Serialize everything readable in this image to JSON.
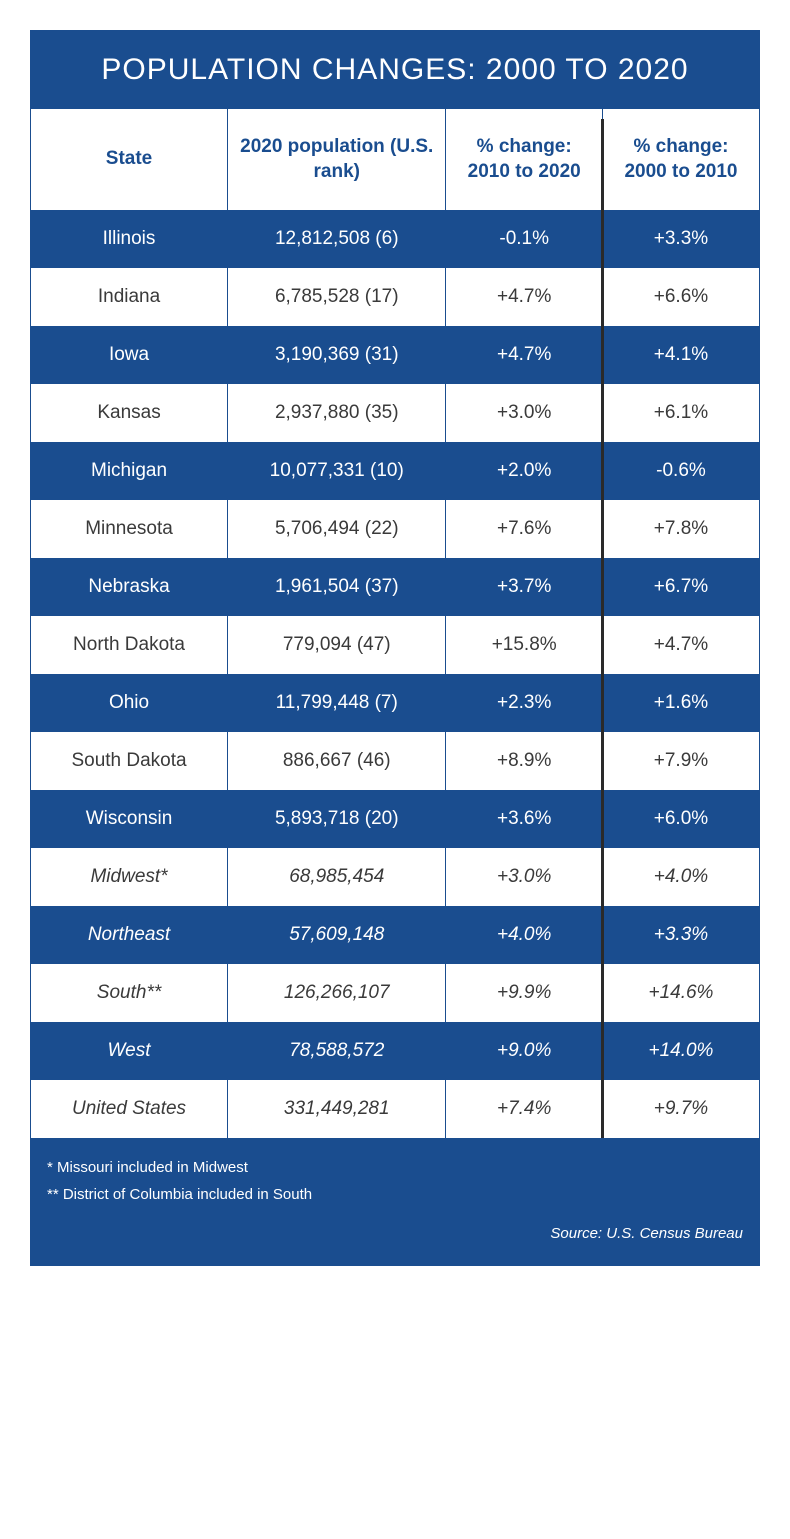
{
  "title": "POPULATION CHANGES: 2000 TO 2020",
  "colors": {
    "primary_blue": "#1a4d8f",
    "text_gray": "#3a3a3a",
    "divider": "#2a2a2a",
    "white": "#ffffff"
  },
  "typography": {
    "title_fontsize": 30,
    "header_fontsize": 19,
    "cell_fontsize": 19,
    "footer_fontsize": 15
  },
  "columns": [
    {
      "label": "State",
      "width_pct": 27
    },
    {
      "label": "2020 population (U.S. rank)",
      "width_pct": 30
    },
    {
      "label": "% change: 2010 to 2020",
      "width_pct": 21.5
    },
    {
      "label": "% change: 2000 to 2010",
      "width_pct": 21.5
    }
  ],
  "rows": [
    {
      "state": "Illinois",
      "pop": "12,812,508 (6)",
      "ch1": "-0.1%",
      "ch2": "+3.3%",
      "style": "blue",
      "italic": false
    },
    {
      "state": "Indiana",
      "pop": "6,785,528 (17)",
      "ch1": "+4.7%",
      "ch2": "+6.6%",
      "style": "white",
      "italic": false
    },
    {
      "state": "Iowa",
      "pop": "3,190,369 (31)",
      "ch1": "+4.7%",
      "ch2": "+4.1%",
      "style": "blue",
      "italic": false
    },
    {
      "state": "Kansas",
      "pop": "2,937,880 (35)",
      "ch1": "+3.0%",
      "ch2": "+6.1%",
      "style": "white",
      "italic": false
    },
    {
      "state": "Michigan",
      "pop": "10,077,331 (10)",
      "ch1": "+2.0%",
      "ch2": "-0.6%",
      "style": "blue",
      "italic": false
    },
    {
      "state": "Minnesota",
      "pop": "5,706,494 (22)",
      "ch1": "+7.6%",
      "ch2": "+7.8%",
      "style": "white",
      "italic": false
    },
    {
      "state": "Nebraska",
      "pop": "1,961,504 (37)",
      "ch1": "+3.7%",
      "ch2": "+6.7%",
      "style": "blue",
      "italic": false
    },
    {
      "state": "North Dakota",
      "pop": "779,094 (47)",
      "ch1": "+15.8%",
      "ch2": "+4.7%",
      "style": "white",
      "italic": false
    },
    {
      "state": "Ohio",
      "pop": "11,799,448 (7)",
      "ch1": "+2.3%",
      "ch2": "+1.6%",
      "style": "blue",
      "italic": false
    },
    {
      "state": "South Dakota",
      "pop": "886,667 (46)",
      "ch1": "+8.9%",
      "ch2": "+7.9%",
      "style": "white",
      "italic": false
    },
    {
      "state": "Wisconsin",
      "pop": "5,893,718 (20)",
      "ch1": "+3.6%",
      "ch2": "+6.0%",
      "style": "blue",
      "italic": false
    },
    {
      "state": "Midwest*",
      "pop": "68,985,454",
      "ch1": "+3.0%",
      "ch2": "+4.0%",
      "style": "white",
      "italic": true
    },
    {
      "state": "Northeast",
      "pop": "57,609,148",
      "ch1": "+4.0%",
      "ch2": "+3.3%",
      "style": "blue",
      "italic": true
    },
    {
      "state": "South**",
      "pop": "126,266,107",
      "ch1": "+9.9%",
      "ch2": "+14.6%",
      "style": "white",
      "italic": true
    },
    {
      "state": "West",
      "pop": "78,588,572",
      "ch1": "+9.0%",
      "ch2": "+14.0%",
      "style": "blue",
      "italic": true
    },
    {
      "state": "United States",
      "pop": "331,449,281",
      "ch1": "+7.4%",
      "ch2": "+9.7%",
      "style": "white",
      "italic": true
    }
  ],
  "footer": {
    "notes": [
      "* Missouri included in Midwest",
      "** District of Columbia included in South"
    ],
    "source": "Source: U.S. Census Bureau"
  }
}
